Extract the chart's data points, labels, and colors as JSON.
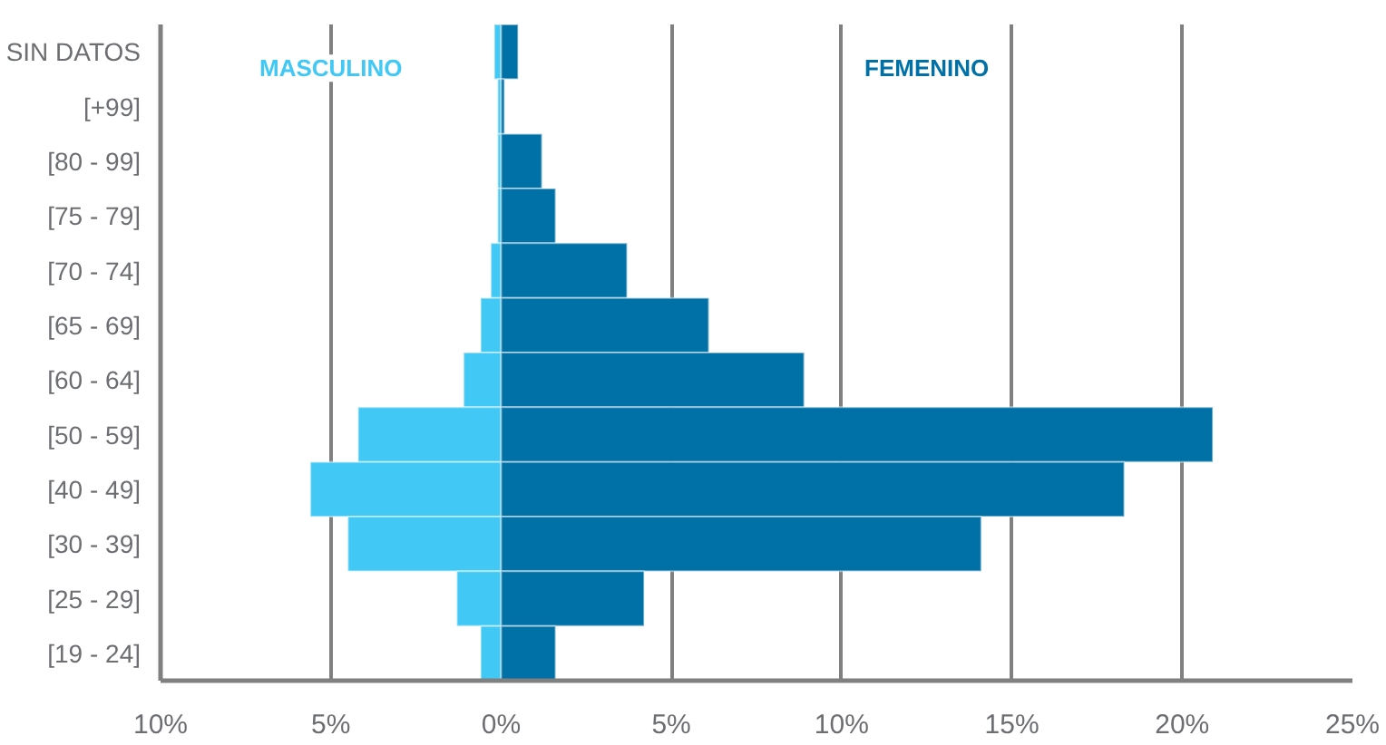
{
  "chart_data": {
    "type": "bar",
    "orientation": "horizontal",
    "stacked": true,
    "categories": [
      "SIN DATOS",
      "[+99]",
      "[80 - 99]",
      "[75 - 79]",
      "[70 - 74]",
      "[65 - 69]",
      "[60 - 64]",
      "[50 - 59]",
      "[40 - 49]",
      "[30 - 39]",
      "[25 - 29]",
      "[19 - 24]"
    ],
    "series": [
      {
        "name": "MASCULINO",
        "color": "#41c8f5",
        "values": [
          -0.2,
          -0.1,
          -0.1,
          -0.1,
          -0.3,
          -0.6,
          -1.1,
          -4.2,
          -5.6,
          -4.5,
          -1.3,
          -0.6
        ]
      },
      {
        "name": "FEMENINO",
        "color": "#0071a7",
        "values": [
          0.5,
          0.1,
          1.2,
          1.6,
          3.7,
          6.1,
          8.9,
          20.9,
          18.3,
          14.1,
          4.2,
          1.6
        ]
      }
    ],
    "xlim": [
      -10,
      25
    ],
    "xticks": [
      {
        "value": -10,
        "label": "10%"
      },
      {
        "value": -5,
        "label": "5%"
      },
      {
        "value": 0,
        "label": "0%"
      },
      {
        "value": 5,
        "label": "5%"
      },
      {
        "value": 10,
        "label": "10%"
      },
      {
        "value": 15,
        "label": "15%"
      },
      {
        "value": 20,
        "label": "20%"
      },
      {
        "value": 25,
        "label": "25%"
      }
    ],
    "grid": "x"
  }
}
